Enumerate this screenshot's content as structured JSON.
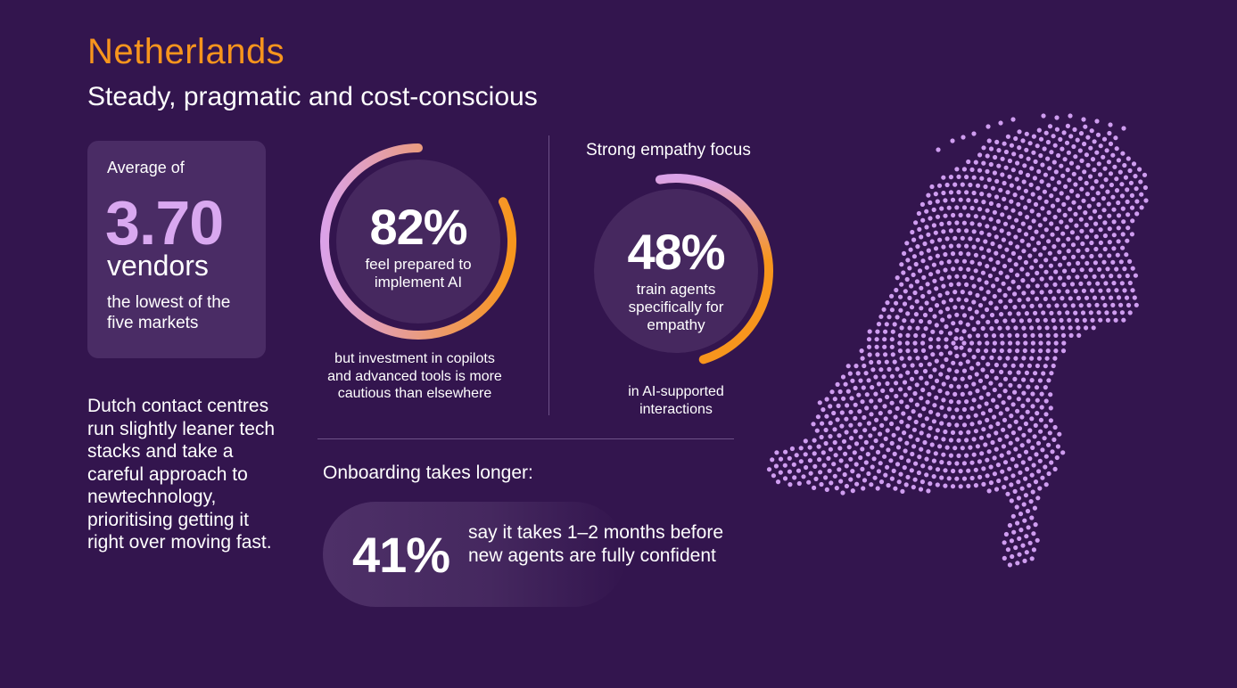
{
  "header": {
    "title": "Netherlands",
    "subtitle": "Steady, pragmatic and cost-conscious"
  },
  "vendor_card": {
    "lead": "Average of",
    "value": "3.70",
    "unit": "vendors",
    "note": "the lowest of the five markets"
  },
  "dutch_text": "Dutch contact centres run slightly leaner tech stacks and take a careful approach to newtechnology, prioritising getting it right over moving fast.",
  "ai_stat": {
    "value": "82%",
    "fraction": 0.82,
    "label": "feel prepared to implement AI",
    "below": "but investment in copilots and advanced tools is more cautious than elsewhere"
  },
  "empathy_stat": {
    "heading": "Strong empathy focus",
    "value": "48%",
    "fraction": 0.48,
    "label": "train agents specifically for empathy",
    "below": "in AI-supported interactions"
  },
  "onboarding": {
    "heading": "Onboarding takes longer:",
    "value": "41%",
    "text": "say it takes 1–2 months before new agents are fully confident"
  },
  "colors": {
    "background": "#33154e",
    "accent_orange": "#f7951d",
    "accent_lilac": "#d9a8f0",
    "card": "#4a2c65",
    "map_dots": "#cf9df0"
  },
  "map": {
    "icon": "netherlands-dot-map"
  }
}
